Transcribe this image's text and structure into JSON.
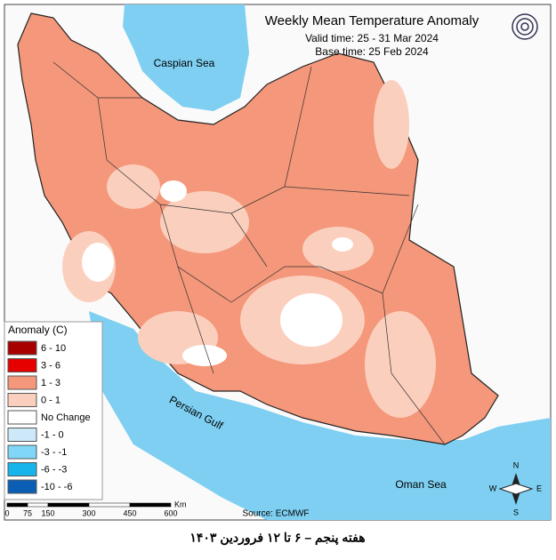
{
  "header": {
    "title": "Weekly Mean Temperature Anomaly",
    "valid_time": "Valid time: 25 - 31 Mar 2024",
    "base_time": "Base time: 25 Feb 2024"
  },
  "legend": {
    "title": "Anomaly (C)",
    "items": [
      {
        "label": "6 - 10",
        "color": "#a80000"
      },
      {
        "label": "3 - 6",
        "color": "#e60000"
      },
      {
        "label": "1 - 3",
        "color": "#f4977a"
      },
      {
        "label": "0 - 1",
        "color": "#fbcfbd"
      },
      {
        "label": "No Change",
        "color": "#ffffff"
      },
      {
        "label": "-1 - 0",
        "color": "#cde9f9"
      },
      {
        "label": "-3 - -1",
        "color": "#7fd6f7"
      },
      {
        "label": "-6 - -3",
        "color": "#17b4ec"
      },
      {
        "label": "-10 - -6",
        "color": "#0a5fb4"
      }
    ]
  },
  "labels": {
    "caspian": "Caspian Sea",
    "gulf": "Persian Gulf",
    "oman": "Oman Sea"
  },
  "scale": {
    "ticks": [
      0,
      75,
      150,
      300,
      450,
      600
    ],
    "unit": "Km"
  },
  "compass": {
    "n": "N",
    "s": "S",
    "e": "E",
    "w": "W"
  },
  "source": "Source: ECMWF",
  "caption": "هفته پنجم – ۶ تا ۱۲ فروردین ۱۴۰۳"
}
